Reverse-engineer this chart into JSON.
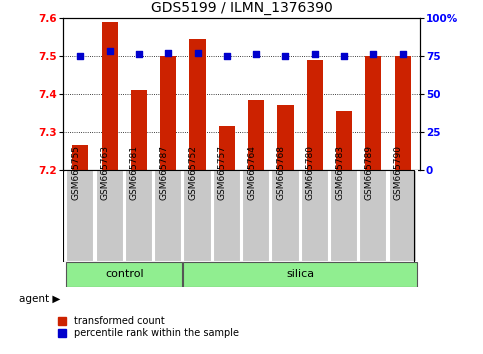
{
  "title": "GDS5199 / ILMN_1376390",
  "samples": [
    "GSM665755",
    "GSM665763",
    "GSM665781",
    "GSM665787",
    "GSM665752",
    "GSM665757",
    "GSM665764",
    "GSM665768",
    "GSM665780",
    "GSM665783",
    "GSM665789",
    "GSM665790"
  ],
  "bar_values": [
    7.265,
    7.59,
    7.41,
    7.5,
    7.545,
    7.315,
    7.385,
    7.37,
    7.49,
    7.355,
    7.5,
    7.5
  ],
  "percentile_values": [
    75,
    78,
    76,
    77,
    77,
    75,
    76,
    75,
    76,
    75,
    76,
    76
  ],
  "n_control": 4,
  "n_silica": 8,
  "bar_color": "#CC2200",
  "percentile_color": "#0000CC",
  "group_color": "#90EE90",
  "cell_color": "#c8c8c8",
  "ylim_left": [
    7.2,
    7.6
  ],
  "ylim_right": [
    0,
    100
  ],
  "yticks_left": [
    7.2,
    7.3,
    7.4,
    7.5,
    7.6
  ],
  "yticks_right": [
    0,
    25,
    50,
    75,
    100
  ],
  "ytick_labels_right": [
    "0",
    "25",
    "50",
    "75",
    "100%"
  ],
  "bar_width": 0.55,
  "title_fontsize": 10,
  "tick_fontsize": 7.5,
  "sample_fontsize": 6.5,
  "group_fontsize": 8,
  "legend_fontsize": 7
}
